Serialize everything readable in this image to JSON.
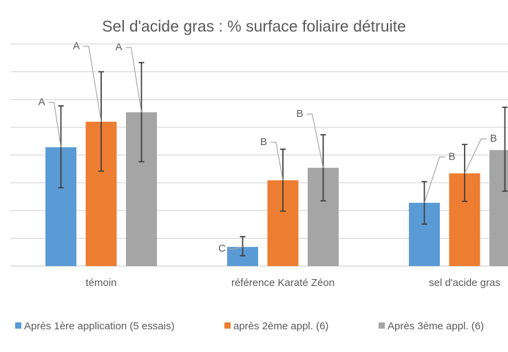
{
  "chart_data": {
    "type": "bar",
    "title": "Sel d'acide gras : % surface foliaire détruite",
    "xlabel": "",
    "ylabel": "",
    "ylim": [
      0,
      8
    ],
    "grid": true,
    "legend_position": "bottom",
    "categories": [
      "témoin",
      "référence Karaté Zéon",
      "sel d'acide gras"
    ],
    "series": [
      {
        "name": "Après 1ère application (5 essais)",
        "color": "#5B9BD5",
        "values": [
          4.28,
          0.69,
          2.28
        ],
        "error_low": [
          2.82,
          0.37,
          1.51
        ],
        "error_high": [
          5.77,
          1.06,
          3.04
        ],
        "labels": [
          "A",
          "C",
          "B"
        ]
      },
      {
        "name": "après 2ème appl. (6)",
        "color": "#ED7D31",
        "values": [
          5.2,
          3.09,
          3.34
        ],
        "error_low": [
          3.42,
          1.98,
          2.33
        ],
        "error_high": [
          7.0,
          4.21,
          4.38
        ],
        "labels": [
          "A",
          "B",
          "B"
        ]
      },
      {
        "name": "Après 3ème appl. (6)",
        "color": "#A5A5A5",
        "values": [
          5.54,
          3.54,
          4.18
        ],
        "error_low": [
          3.76,
          2.35,
          2.7
        ],
        "error_high": [
          7.33,
          4.73,
          5.72
        ],
        "labels": [
          "A",
          "B",
          ""
        ]
      }
    ]
  }
}
